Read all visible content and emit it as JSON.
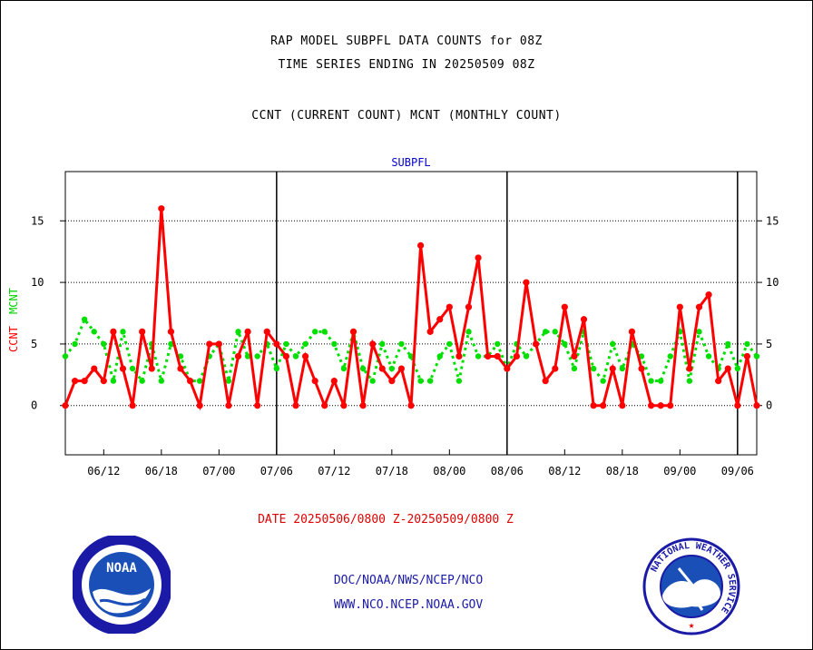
{
  "header": {
    "title_line1": "RAP MODEL SUBPFL DATA COUNTS for 08Z",
    "title_line2": "TIME SERIES ENDING IN 20250509 08Z",
    "subtitle": "CCNT (CURRENT COUNT) MCNT (MONTHLY COUNT)"
  },
  "footer": {
    "date_range": "DATE 20250506/0800 Z-20250509/0800 Z",
    "org": "DOC/NOAA/NWS/NCEP/NCO",
    "url": "WWW.NCO.NCEP.NOAA.GOV"
  },
  "logos": {
    "noaa_text": "NOAA",
    "nws_ring_text": "NATIONAL WEATHER SERVICE"
  },
  "colors": {
    "ccnt": "#ff0000",
    "mcnt": "#00e000",
    "panel_title": "#0000cc"
  },
  "chart_data": {
    "type": "line",
    "title": "SUBPFL",
    "ylabel_ccnt": "CCNT",
    "ylabel_mcnt": "MCNT",
    "ylim": [
      -4,
      19
    ],
    "yticks": [
      0,
      5,
      10,
      15
    ],
    "grid": "horizontal dotted at y ticks",
    "legend": "none",
    "x_count": 73,
    "xticks": [
      {
        "i": 4,
        "label": "06/12"
      },
      {
        "i": 10,
        "label": "06/18"
      },
      {
        "i": 16,
        "label": "07/00"
      },
      {
        "i": 22,
        "label": "07/06"
      },
      {
        "i": 28,
        "label": "07/12"
      },
      {
        "i": 34,
        "label": "07/18"
      },
      {
        "i": 40,
        "label": "08/00"
      },
      {
        "i": 46,
        "label": "08/06"
      },
      {
        "i": 52,
        "label": "08/12"
      },
      {
        "i": 58,
        "label": "08/18"
      },
      {
        "i": 64,
        "label": "09/00"
      },
      {
        "i": 70,
        "label": "09/06"
      }
    ],
    "day_boundaries": [
      22,
      46,
      70
    ],
    "series": [
      {
        "name": "CCNT",
        "values": [
          0,
          2,
          2,
          3,
          2,
          6,
          3,
          0,
          6,
          3,
          16,
          6,
          3,
          2,
          0,
          5,
          5,
          0,
          4,
          6,
          0,
          6,
          5,
          4,
          0,
          4,
          2,
          0,
          2,
          0,
          6,
          0,
          5,
          3,
          2,
          3,
          0,
          13,
          6,
          7,
          8,
          4,
          8,
          12,
          4,
          4,
          3,
          4,
          10,
          5,
          2,
          3,
          8,
          4,
          7,
          0,
          0,
          3,
          0,
          6,
          3,
          0,
          0,
          0,
          8,
          3,
          8,
          9,
          2,
          3,
          0,
          4,
          0
        ]
      },
      {
        "name": "MCNT",
        "values": [
          4,
          5,
          7,
          6,
          5,
          2,
          6,
          3,
          2,
          5,
          2,
          5,
          4,
          2,
          2,
          4,
          5,
          2,
          6,
          4,
          4,
          5,
          3,
          5,
          4,
          5,
          6,
          6,
          5,
          3,
          6,
          3,
          2,
          5,
          3,
          5,
          4,
          2,
          2,
          4,
          5,
          2,
          6,
          4,
          4,
          5,
          3,
          5,
          4,
          5,
          6,
          6,
          5,
          3,
          6,
          3,
          2,
          5,
          3,
          5,
          4,
          2,
          2,
          4,
          6,
          2,
          6,
          4,
          3,
          5,
          3,
          5,
          4
        ]
      }
    ]
  }
}
